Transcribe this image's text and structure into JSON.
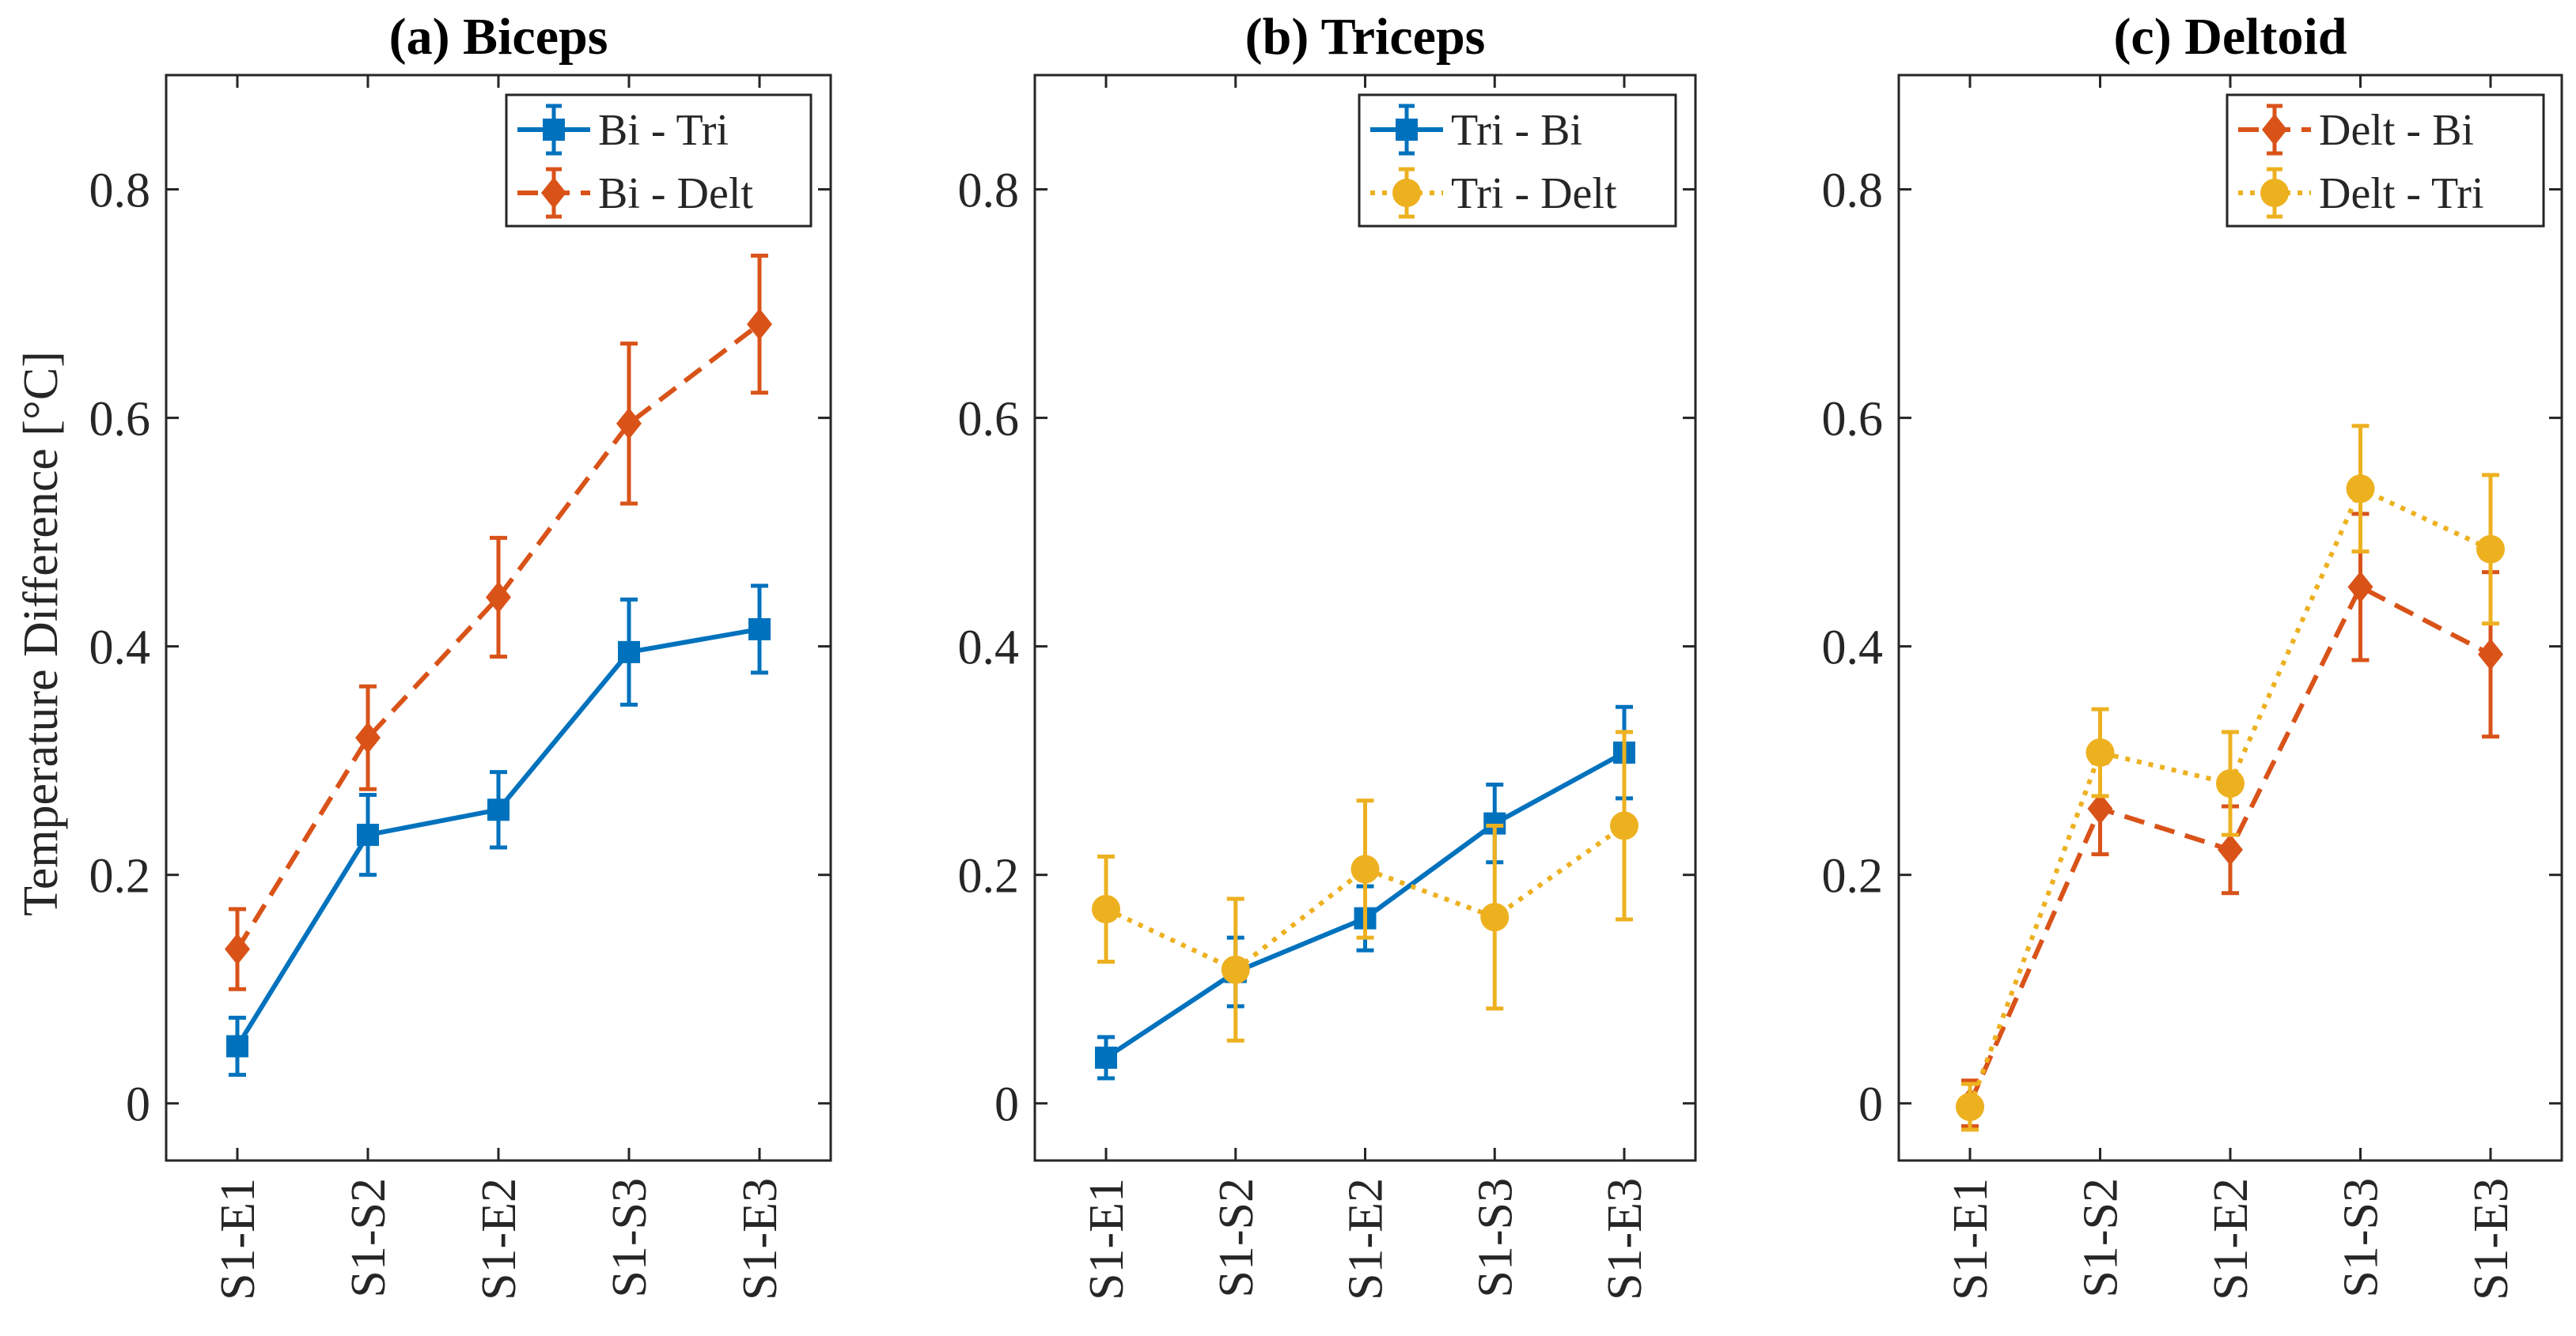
{
  "chart_data": [
    {
      "type": "line",
      "title": "(a) Biceps",
      "xlabel": "",
      "ylabel": "Temperature Difference [°C]",
      "ylim": [
        -0.05,
        0.9
      ],
      "yticks": [
        0,
        0.2,
        0.4,
        0.6,
        0.8
      ],
      "ytick_labels": [
        "0",
        "0.2",
        "0.4",
        "0.6",
        "0.8"
      ],
      "categories": [
        "S1-E1",
        "S1-S2",
        "S1-E2",
        "S1-S3",
        "S1-E3"
      ],
      "legend_position": "top-right",
      "series": [
        {
          "name": "Bi - Tri",
          "color": "#0072BD",
          "line": "solid",
          "marker": "square",
          "values": [
            0.05,
            0.235,
            0.257,
            0.395,
            0.415
          ],
          "errors": [
            0.025,
            0.035,
            0.033,
            0.046,
            0.038
          ]
        },
        {
          "name": "Bi - Delt",
          "color": "#D95319",
          "line": "dashed",
          "marker": "diamond",
          "values": [
            0.135,
            0.32,
            0.443,
            0.595,
            0.682
          ],
          "errors": [
            0.035,
            0.045,
            0.052,
            0.07,
            0.06
          ]
        }
      ]
    },
    {
      "type": "line",
      "title": "(b) Triceps",
      "xlabel": "",
      "ylabel": "",
      "ylim": [
        -0.05,
        0.9
      ],
      "yticks": [
        0,
        0.2,
        0.4,
        0.6,
        0.8
      ],
      "ytick_labels": [
        "0",
        "0.2",
        "0.4",
        "0.6",
        "0.8"
      ],
      "categories": [
        "S1-E1",
        "S1-S2",
        "S1-E2",
        "S1-S3",
        "S1-E3"
      ],
      "legend_position": "top-right",
      "series": [
        {
          "name": "Tri - Bi",
          "color": "#0072BD",
          "line": "solid",
          "marker": "square",
          "values": [
            0.04,
            0.115,
            0.162,
            0.245,
            0.307
          ],
          "errors": [
            0.018,
            0.03,
            0.028,
            0.034,
            0.04
          ]
        },
        {
          "name": "Tri - Delt",
          "color": "#EDB120",
          "line": "dotted",
          "marker": "circle",
          "values": [
            0.17,
            0.117,
            0.205,
            0.163,
            0.243
          ],
          "errors": [
            0.046,
            0.062,
            0.06,
            0.08,
            0.082
          ]
        }
      ]
    },
    {
      "type": "line",
      "title": "(c) Deltoid",
      "xlabel": "",
      "ylabel": "",
      "ylim": [
        -0.05,
        0.9
      ],
      "yticks": [
        0,
        0.2,
        0.4,
        0.6,
        0.8
      ],
      "ytick_labels": [
        "0",
        "0.2",
        "0.4",
        "0.6",
        "0.8"
      ],
      "categories": [
        "S1-E1",
        "S1-S2",
        "S1-E2",
        "S1-S3",
        "S1-E3"
      ],
      "legend_position": "top-right",
      "series": [
        {
          "name": "Delt - Bi",
          "color": "#D95319",
          "line": "dashed",
          "marker": "diamond",
          "values": [
            0.0,
            0.258,
            0.222,
            0.452,
            0.393
          ],
          "errors": [
            0.02,
            0.04,
            0.038,
            0.064,
            0.072
          ]
        },
        {
          "name": "Delt - Tri",
          "color": "#EDB120",
          "line": "dotted",
          "marker": "circle",
          "values": [
            -0.003,
            0.307,
            0.28,
            0.538,
            0.485
          ],
          "errors": [
            0.02,
            0.038,
            0.045,
            0.055,
            0.065
          ]
        }
      ]
    }
  ]
}
